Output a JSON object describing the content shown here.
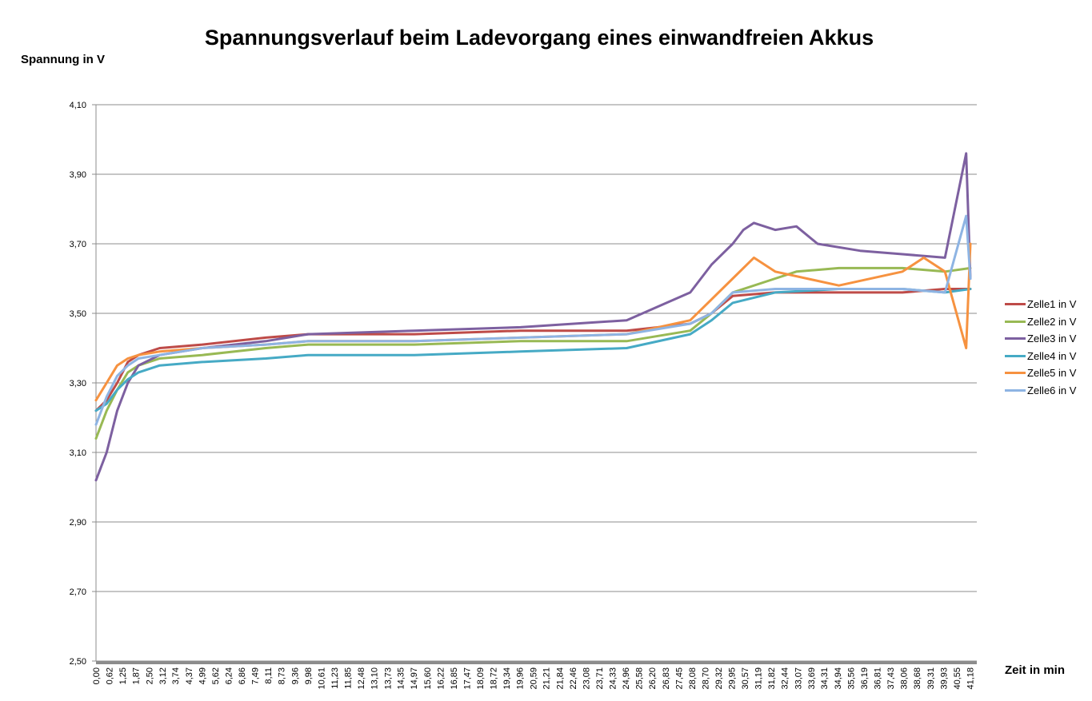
{
  "chart_data": {
    "type": "line",
    "title": "Spannungsverlauf beim Ladevorgang eines einwandfreien Akkus",
    "ylabel": "Spannung in V",
    "xlabel": "Zeit in min",
    "ylim": [
      2.5,
      4.1
    ],
    "xlim": [
      0,
      41.5
    ],
    "grid": "horizontal",
    "legend_position": "right",
    "y_ticks": [
      "2,50",
      "2,70",
      "2,90",
      "3,10",
      "3,30",
      "3,50",
      "3,70",
      "3,90",
      "4,10"
    ],
    "x_ticks": [
      "0,00",
      "0,62",
      "1,25",
      "1,87",
      "2,50",
      "3,12",
      "3,74",
      "4,37",
      "4,99",
      "5,62",
      "6,24",
      "6,86",
      "7,49",
      "8,11",
      "8,73",
      "9,36",
      "9,98",
      "10,61",
      "11,23",
      "11,85",
      "12,48",
      "13,10",
      "13,73",
      "14,35",
      "14,97",
      "15,60",
      "16,22",
      "16,85",
      "17,47",
      "18,09",
      "18,72",
      "19,34",
      "19,96",
      "20,59",
      "21,21",
      "21,84",
      "22,46",
      "23,08",
      "23,71",
      "24,33",
      "24,96",
      "25,58",
      "26,20",
      "26,83",
      "27,45",
      "28,08",
      "28,70",
      "29,32",
      "29,95",
      "30,57",
      "31,19",
      "31,82",
      "32,44",
      "33,07",
      "33,69",
      "34,31",
      "34,94",
      "35,56",
      "36,19",
      "36,81",
      "37,43",
      "38,06",
      "38,68",
      "39,31",
      "39,93",
      "40,55",
      "41,18"
    ],
    "series": [
      {
        "name": "Zelle1 in V",
        "color": "#be4b48",
        "x": [
          0,
          0.5,
          1,
          1.5,
          2,
          3,
          5,
          8,
          10,
          15,
          20,
          25,
          28,
          29,
          30,
          32,
          35,
          38,
          40,
          41.2
        ],
        "y": [
          3.22,
          3.25,
          3.3,
          3.36,
          3.38,
          3.4,
          3.41,
          3.43,
          3.44,
          3.44,
          3.45,
          3.45,
          3.47,
          3.5,
          3.55,
          3.56,
          3.56,
          3.56,
          3.57,
          3.57
        ]
      },
      {
        "name": "Zelle2 in V",
        "color": "#98b954",
        "x": [
          0,
          0.5,
          1,
          1.5,
          2,
          3,
          5,
          8,
          10,
          15,
          20,
          25,
          28,
          29,
          30,
          32,
          33,
          35,
          38,
          40,
          41.2
        ],
        "y": [
          3.14,
          3.22,
          3.28,
          3.33,
          3.35,
          3.37,
          3.38,
          3.4,
          3.41,
          3.41,
          3.42,
          3.42,
          3.45,
          3.5,
          3.56,
          3.6,
          3.62,
          3.63,
          3.63,
          3.62,
          3.63
        ]
      },
      {
        "name": "Zelle3 in V",
        "color": "#7d60a0",
        "x": [
          0,
          0.5,
          1,
          1.5,
          2,
          3,
          5,
          8,
          10,
          15,
          20,
          25,
          28,
          29,
          30,
          30.5,
          31,
          32,
          33,
          34,
          36,
          38,
          40,
          41.0,
          41.2
        ],
        "y": [
          3.02,
          3.1,
          3.22,
          3.3,
          3.35,
          3.38,
          3.4,
          3.42,
          3.44,
          3.45,
          3.46,
          3.48,
          3.56,
          3.64,
          3.7,
          3.74,
          3.76,
          3.74,
          3.75,
          3.7,
          3.68,
          3.67,
          3.66,
          3.96,
          3.6
        ]
      },
      {
        "name": "Zelle4 in V",
        "color": "#46aac5",
        "x": [
          0,
          0.5,
          1,
          1.5,
          2,
          3,
          5,
          8,
          10,
          15,
          20,
          25,
          28,
          29,
          30,
          32,
          35,
          38,
          40,
          41.2
        ],
        "y": [
          3.22,
          3.24,
          3.28,
          3.31,
          3.33,
          3.35,
          3.36,
          3.37,
          3.38,
          3.38,
          3.39,
          3.4,
          3.44,
          3.48,
          3.53,
          3.56,
          3.57,
          3.57,
          3.56,
          3.57
        ]
      },
      {
        "name": "Zelle5 in V",
        "color": "#f69240",
        "x": [
          0,
          0.5,
          1,
          1.5,
          2,
          3,
          5,
          8,
          10,
          15,
          20,
          25,
          28,
          29,
          30,
          31,
          32,
          35,
          38,
          39,
          40,
          41.0,
          41.2
        ],
        "y": [
          3.25,
          3.3,
          3.35,
          3.37,
          3.38,
          3.39,
          3.4,
          3.41,
          3.42,
          3.42,
          3.43,
          3.44,
          3.48,
          3.54,
          3.6,
          3.66,
          3.62,
          3.58,
          3.62,
          3.66,
          3.62,
          3.4,
          3.7
        ]
      },
      {
        "name": "Zelle6 in V",
        "color": "#8eb4e3",
        "x": [
          0,
          0.5,
          1,
          1.5,
          2,
          3,
          5,
          8,
          10,
          15,
          20,
          25,
          28,
          29,
          30,
          32,
          35,
          38,
          40,
          41.0,
          41.2
        ],
        "y": [
          3.18,
          3.26,
          3.32,
          3.35,
          3.37,
          3.38,
          3.4,
          3.41,
          3.42,
          3.42,
          3.43,
          3.44,
          3.47,
          3.5,
          3.56,
          3.57,
          3.57,
          3.57,
          3.56,
          3.78,
          3.6
        ]
      }
    ]
  }
}
